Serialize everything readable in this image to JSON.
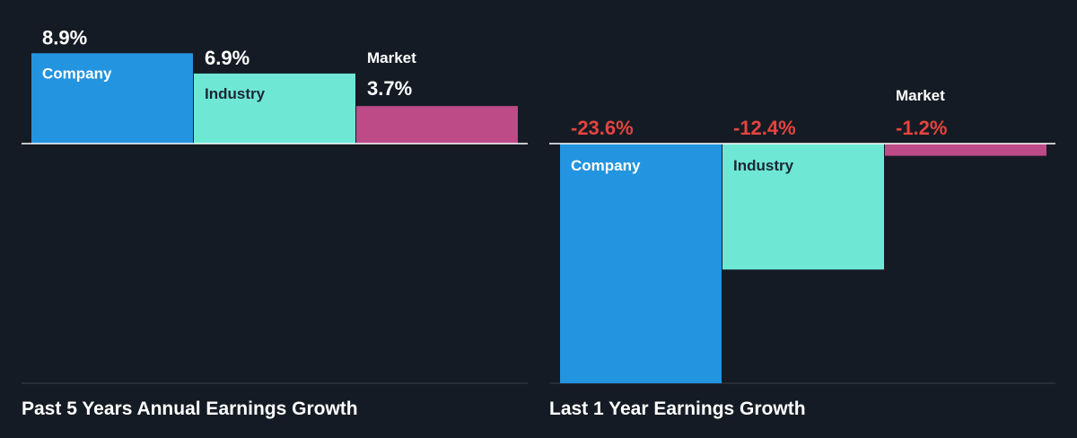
{
  "chart_data": [
    {
      "type": "bar",
      "title": "Past 5 Years Annual Earnings Growth",
      "categories": [
        "Company",
        "Industry",
        "Market"
      ],
      "values": [
        8.9,
        6.9,
        3.7
      ],
      "value_labels": [
        "8.9%",
        "6.9%",
        "3.7%"
      ],
      "unit": "%",
      "colors": [
        "#2394df",
        "#6ee7d5",
        "#bd4b88"
      ],
      "value_label_color": "#ffffff",
      "ylim": [
        -23.6,
        8.9
      ]
    },
    {
      "type": "bar",
      "title": "Last 1 Year Earnings Growth",
      "categories": [
        "Company",
        "Industry",
        "Market"
      ],
      "values": [
        -23.6,
        -12.4,
        -1.2
      ],
      "value_labels": [
        "-23.6%",
        "-12.4%",
        "-1.2%"
      ],
      "unit": "%",
      "colors": [
        "#2394df",
        "#6ee7d5",
        "#bd4b88"
      ],
      "value_label_color": "#e4443f",
      "ylim": [
        -23.6,
        8.9
      ]
    }
  ],
  "style": {
    "background": "#151b24",
    "axis_color": "#ffffff",
    "label_dark": "#1b2733",
    "label_light": "#ffffff"
  }
}
